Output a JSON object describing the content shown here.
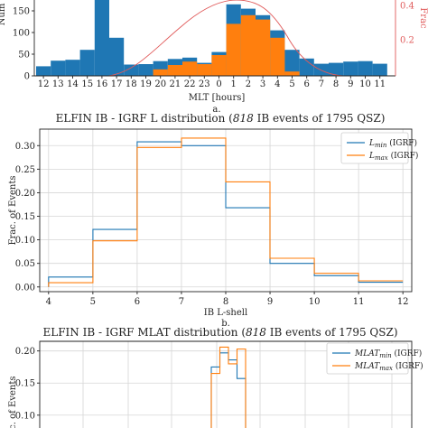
{
  "chart_data": [
    {
      "type": "bar",
      "title": "",
      "xlabel": "MLT [hours]",
      "ylabel": "Num",
      "ylabel_right": "Frac",
      "panel_label": "a.",
      "categories": [
        "12",
        "13",
        "14",
        "15",
        "16",
        "17",
        "18",
        "19",
        "20",
        "21",
        "22",
        "23",
        "0",
        "1",
        "2",
        "3",
        "4",
        "5",
        "6",
        "7",
        "8",
        "9",
        "10",
        "11"
      ],
      "ylim": [
        0,
        175
      ],
      "yticks": [
        "0",
        "50",
        "100",
        "150"
      ],
      "right_ticks": [
        "0.2",
        "0.4"
      ],
      "series": [
        {
          "color": "#1f77b4",
          "values": [
            22,
            35,
            37,
            60,
            175,
            88,
            26,
            27,
            34,
            39,
            42,
            30,
            55,
            165,
            155,
            140,
            105,
            60,
            40,
            28,
            30,
            33,
            34,
            28
          ]
        },
        {
          "color": "#ff7f0e",
          "values": [
            0,
            0,
            0,
            0,
            0,
            0,
            0,
            0,
            15,
            25,
            33,
            27,
            48,
            120,
            140,
            130,
            88,
            10,
            0,
            0,
            0,
            0,
            0,
            0
          ]
        }
      ],
      "curve_color": "#e05a5a"
    },
    {
      "type": "line",
      "title": "ELFIN IB - IGRF L distribution (818 IB events of 1795 QSZ)",
      "xlabel": "IB L-shell",
      "ylabel": "Frac. of Events",
      "panel_label": "b.",
      "xlim": [
        3.8,
        12.2
      ],
      "ylim": [
        -0.01,
        0.335
      ],
      "xticks": [
        "4",
        "5",
        "6",
        "7",
        "8",
        "9",
        "10",
        "11",
        "12"
      ],
      "yticks": [
        "0.00",
        "0.05",
        "0.10",
        "0.15",
        "0.20",
        "0.25",
        "0.30"
      ],
      "bin_edges": [
        4,
        5,
        6,
        7,
        8,
        9,
        10,
        11,
        12
      ],
      "legend_position": "top-right",
      "series": [
        {
          "name": "L_min (IGRF)",
          "legend_main": "L",
          "legend_sub": "min",
          "legend_suffix": " (IGRF)",
          "color": "#1f77b4",
          "values": [
            0.021,
            0.122,
            0.308,
            0.3,
            0.168,
            0.05,
            0.024,
            0.01
          ]
        },
        {
          "name": "L_max (IGRF)",
          "legend_main": "L",
          "legend_sub": "max",
          "legend_suffix": " (IGRF)",
          "color": "#ff7f0e",
          "values": [
            0.009,
            0.098,
            0.296,
            0.316,
            0.223,
            0.061,
            0.029,
            0.013
          ]
        }
      ]
    },
    {
      "type": "line",
      "title": "ELFIN IB - IGRF MLAT distribution (818 IB events of 1795 QSZ)",
      "xlabel": "",
      "ylabel": "Frac. of Events",
      "ylim": [
        0.08,
        0.215
      ],
      "yticks": [
        "0.10",
        "0.15",
        "0.20"
      ],
      "bin_edges": [
        0,
        1,
        2,
        3,
        4
      ],
      "legend_position": "top-right",
      "series": [
        {
          "name": "MLAT_min (IGRF)",
          "legend_main": "MLAT",
          "legend_sub": "min",
          "legend_suffix": " (IGRF)",
          "color": "#1f77b4",
          "values": [
            0.175,
            0.197,
            0.186,
            0.157
          ]
        },
        {
          "name": "MLAT_max (IGRF)",
          "legend_main": "MLAT",
          "legend_sub": "max",
          "legend_suffix": " (IGRF)",
          "color": "#ff7f0e",
          "values": [
            0.165,
            0.206,
            0.18,
            0.203
          ]
        }
      ]
    }
  ]
}
